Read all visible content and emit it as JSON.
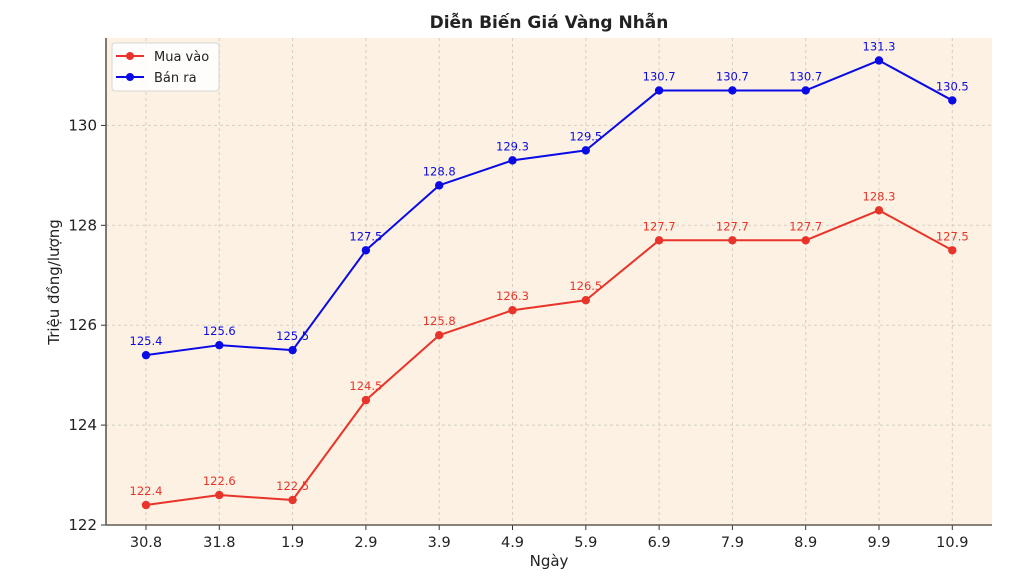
{
  "chart_data": {
    "type": "line",
    "title": "Diễn Biến Giá Vàng Nhẫn",
    "xlabel": "Ngày",
    "ylabel": "Triệu đồng/lượng",
    "categories": [
      "30.8",
      "31.8",
      "1.9",
      "2.9",
      "3.9",
      "4.9",
      "5.9",
      "6.9",
      "7.9",
      "8.9",
      "9.9",
      "10.9"
    ],
    "series": [
      {
        "name": "Mua vào",
        "color": "#e8342a",
        "values": [
          122.4,
          122.6,
          122.5,
          124.5,
          125.8,
          126.3,
          126.5,
          127.7,
          127.7,
          127.7,
          128.3,
          127.5
        ]
      },
      {
        "name": "Bán ra",
        "color": "#0a0ae6",
        "values": [
          125.4,
          125.6,
          125.5,
          127.5,
          128.8,
          129.3,
          129.5,
          130.7,
          130.7,
          130.7,
          131.3,
          130.5
        ]
      }
    ],
    "yticks": [
      122,
      124,
      126,
      128,
      130
    ],
    "ylim": [
      122,
      131.75
    ],
    "grid": true,
    "grid_style": "dashed",
    "legend_position": "upper left",
    "plot_background": "#fcf1e2",
    "data_labels": true
  }
}
